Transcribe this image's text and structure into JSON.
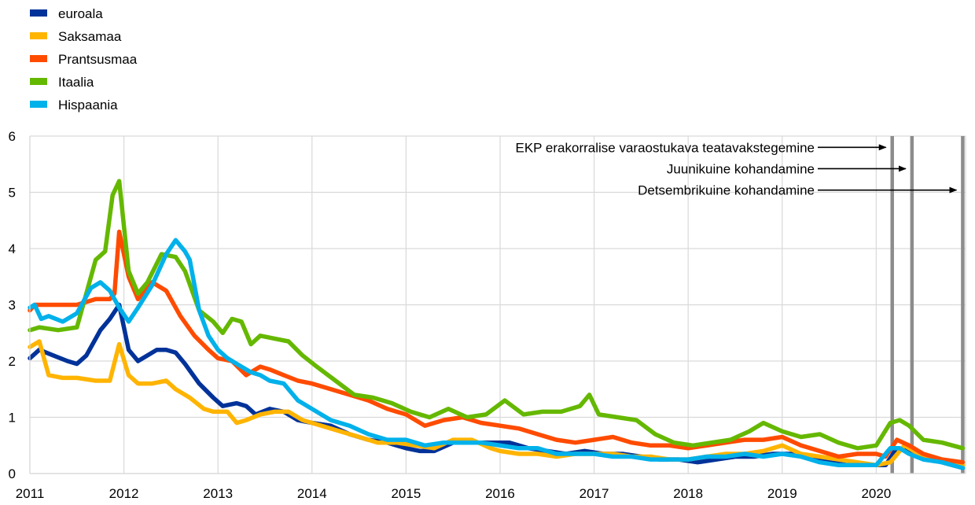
{
  "chart_data": {
    "type": "line",
    "title": "",
    "xlabel": "",
    "ylabel": "",
    "ylim": [
      0,
      6
    ],
    "xlim": [
      2011,
      2020.95
    ],
    "grid": true,
    "legend_position": "top-left",
    "y_ticks": [
      "0",
      "1",
      "2",
      "3",
      "4",
      "5",
      "6"
    ],
    "x_ticks": [
      "2011",
      "2012",
      "2013",
      "2014",
      "2015",
      "2016",
      "2017",
      "2018",
      "2019",
      "2020"
    ],
    "series": [
      {
        "name": "euroala",
        "color": "#003299",
        "x": [
          2011,
          2011.1,
          2011.25,
          2011.4,
          2011.5,
          2011.6,
          2011.75,
          2011.85,
          2011.95,
          2012.05,
          2012.15,
          2012.25,
          2012.35,
          2012.45,
          2012.55,
          2012.65,
          2012.8,
          2012.95,
          2013.05,
          2013.2,
          2013.3,
          2013.4,
          2013.55,
          2013.7,
          2013.85,
          2014,
          2014.2,
          2014.4,
          2014.6,
          2014.8,
          2015,
          2015.15,
          2015.3,
          2015.5,
          2015.7,
          2015.9,
          2016.1,
          2016.3,
          2016.5,
          2016.7,
          2016.9,
          2017.1,
          2017.3,
          2017.5,
          2017.7,
          2017.9,
          2018.1,
          2018.3,
          2018.5,
          2018.7,
          2018.9,
          2019.1,
          2019.3,
          2019.5,
          2019.7,
          2019.9,
          2020.1,
          2020.22,
          2020.35,
          2020.5,
          2020.7,
          2020.92
        ],
        "values": [
          2.05,
          2.2,
          2.1,
          2.0,
          1.95,
          2.1,
          2.55,
          2.75,
          3.0,
          2.2,
          2.0,
          2.1,
          2.2,
          2.2,
          2.15,
          1.95,
          1.6,
          1.35,
          1.2,
          1.25,
          1.2,
          1.05,
          1.15,
          1.1,
          0.95,
          0.9,
          0.85,
          0.7,
          0.6,
          0.55,
          0.45,
          0.4,
          0.4,
          0.55,
          0.55,
          0.55,
          0.55,
          0.45,
          0.4,
          0.35,
          0.4,
          0.35,
          0.35,
          0.3,
          0.25,
          0.25,
          0.2,
          0.25,
          0.3,
          0.3,
          0.35,
          0.35,
          0.3,
          0.2,
          0.15,
          0.15,
          0.15,
          0.45,
          0.4,
          0.3,
          0.2,
          0.1
        ]
      },
      {
        "name": "Saksamaa",
        "color": "#FFB400",
        "x": [
          2011,
          2011.1,
          2011.2,
          2011.35,
          2011.5,
          2011.7,
          2011.85,
          2011.95,
          2012.05,
          2012.15,
          2012.3,
          2012.45,
          2012.55,
          2012.7,
          2012.85,
          2012.95,
          2013.1,
          2013.2,
          2013.3,
          2013.45,
          2013.6,
          2013.75,
          2013.9,
          2014.1,
          2014.3,
          2014.5,
          2014.7,
          2014.9,
          2015.1,
          2015.3,
          2015.5,
          2015.7,
          2015.9,
          2016,
          2016.2,
          2016.4,
          2016.6,
          2016.8,
          2017,
          2017.2,
          2017.4,
          2017.6,
          2017.8,
          2018,
          2018.2,
          2018.4,
          2018.6,
          2018.8,
          2019,
          2019.2,
          2019.4,
          2019.6,
          2019.8,
          2020,
          2020.15,
          2020.3,
          2020.5,
          2020.7,
          2020.92
        ],
        "values": [
          2.25,
          2.35,
          1.75,
          1.7,
          1.7,
          1.65,
          1.65,
          2.3,
          1.75,
          1.6,
          1.6,
          1.65,
          1.5,
          1.35,
          1.15,
          1.1,
          1.1,
          0.9,
          0.95,
          1.05,
          1.1,
          1.1,
          0.95,
          0.85,
          0.75,
          0.65,
          0.55,
          0.55,
          0.5,
          0.45,
          0.6,
          0.6,
          0.45,
          0.4,
          0.35,
          0.35,
          0.3,
          0.35,
          0.35,
          0.35,
          0.3,
          0.3,
          0.25,
          0.25,
          0.3,
          0.35,
          0.35,
          0.4,
          0.5,
          0.35,
          0.3,
          0.25,
          0.2,
          0.15,
          0.2,
          0.5,
          0.3,
          0.2,
          0.15
        ]
      },
      {
        "name": "Prantsusmaa",
        "color": "#FF4B00",
        "x": [
          2011,
          2011.05,
          2011.3,
          2011.5,
          2011.7,
          2011.85,
          2011.9,
          2011.95,
          2012.05,
          2012.15,
          2012.3,
          2012.45,
          2012.6,
          2012.75,
          2012.9,
          2013,
          2013.15,
          2013.3,
          2013.45,
          2013.55,
          2013.7,
          2013.85,
          2014,
          2014.2,
          2014.4,
          2014.6,
          2014.8,
          2015,
          2015.2,
          2015.4,
          2015.6,
          2015.8,
          2016,
          2016.2,
          2016.4,
          2016.6,
          2016.8,
          2017,
          2017.2,
          2017.4,
          2017.6,
          2017.8,
          2018,
          2018.2,
          2018.4,
          2018.6,
          2018.8,
          2019,
          2019.2,
          2019.4,
          2019.6,
          2019.8,
          2020,
          2020.1,
          2020.22,
          2020.35,
          2020.5,
          2020.7,
          2020.92
        ],
        "values": [
          2.9,
          3.0,
          3.0,
          3.0,
          3.1,
          3.1,
          3.2,
          4.3,
          3.5,
          3.1,
          3.4,
          3.25,
          2.8,
          2.45,
          2.2,
          2.05,
          2.0,
          1.75,
          1.9,
          1.85,
          1.75,
          1.65,
          1.6,
          1.5,
          1.4,
          1.3,
          1.15,
          1.05,
          0.85,
          0.95,
          1.0,
          0.9,
          0.85,
          0.8,
          0.7,
          0.6,
          0.55,
          0.6,
          0.65,
          0.55,
          0.5,
          0.5,
          0.45,
          0.5,
          0.55,
          0.6,
          0.6,
          0.65,
          0.5,
          0.4,
          0.3,
          0.35,
          0.35,
          0.3,
          0.6,
          0.5,
          0.35,
          0.25,
          0.2
        ]
      },
      {
        "name": "Itaalia",
        "color": "#65B800",
        "x": [
          2011,
          2011.1,
          2011.3,
          2011.5,
          2011.7,
          2011.8,
          2011.88,
          2011.95,
          2012.05,
          2012.15,
          2012.25,
          2012.4,
          2012.55,
          2012.65,
          2012.8,
          2012.95,
          2013.05,
          2013.15,
          2013.25,
          2013.35,
          2013.45,
          2013.6,
          2013.75,
          2013.9,
          2014.05,
          2014.25,
          2014.45,
          2014.65,
          2014.85,
          2015.05,
          2015.25,
          2015.45,
          2015.65,
          2015.85,
          2016.05,
          2016.25,
          2016.45,
          2016.65,
          2016.85,
          2016.95,
          2017.05,
          2017.25,
          2017.45,
          2017.65,
          2017.85,
          2018.05,
          2018.25,
          2018.45,
          2018.65,
          2018.8,
          2019,
          2019.2,
          2019.4,
          2019.6,
          2019.8,
          2020,
          2020.15,
          2020.25,
          2020.35,
          2020.5,
          2020.7,
          2020.92
        ],
        "values": [
          2.55,
          2.6,
          2.55,
          2.6,
          3.8,
          3.95,
          4.95,
          5.2,
          3.6,
          3.2,
          3.4,
          3.9,
          3.85,
          3.6,
          2.9,
          2.7,
          2.5,
          2.75,
          2.7,
          2.3,
          2.45,
          2.4,
          2.35,
          2.1,
          1.9,
          1.65,
          1.4,
          1.35,
          1.25,
          1.1,
          1.0,
          1.15,
          1.0,
          1.05,
          1.3,
          1.05,
          1.1,
          1.1,
          1.2,
          1.4,
          1.05,
          1.0,
          0.95,
          0.7,
          0.55,
          0.5,
          0.55,
          0.6,
          0.75,
          0.9,
          0.75,
          0.65,
          0.7,
          0.55,
          0.45,
          0.5,
          0.9,
          0.95,
          0.85,
          0.6,
          0.55,
          0.45
        ]
      },
      {
        "name": "Hispaania",
        "color": "#00B1EA",
        "x": [
          2011,
          2011.05,
          2011.12,
          2011.2,
          2011.35,
          2011.5,
          2011.65,
          2011.75,
          2011.85,
          2011.95,
          2012.05,
          2012.15,
          2012.3,
          2012.45,
          2012.55,
          2012.65,
          2012.7,
          2012.8,
          2012.9,
          2013,
          2013.1,
          2013.2,
          2013.35,
          2013.45,
          2013.55,
          2013.7,
          2013.85,
          2014,
          2014.2,
          2014.4,
          2014.6,
          2014.8,
          2015,
          2015.2,
          2015.4,
          2015.6,
          2015.8,
          2016,
          2016.2,
          2016.4,
          2016.6,
          2016.8,
          2017,
          2017.2,
          2017.4,
          2017.6,
          2017.8,
          2018,
          2018.2,
          2018.4,
          2018.6,
          2018.8,
          2019,
          2019.2,
          2019.4,
          2019.6,
          2019.8,
          2020,
          2020.15,
          2020.25,
          2020.35,
          2020.5,
          2020.7,
          2020.92
        ],
        "values": [
          2.95,
          3.0,
          2.75,
          2.8,
          2.7,
          2.85,
          3.3,
          3.4,
          3.25,
          2.95,
          2.7,
          2.95,
          3.35,
          3.9,
          4.15,
          3.95,
          3.8,
          2.9,
          2.45,
          2.2,
          2.05,
          1.95,
          1.8,
          1.75,
          1.65,
          1.6,
          1.3,
          1.15,
          0.95,
          0.85,
          0.7,
          0.6,
          0.6,
          0.5,
          0.55,
          0.55,
          0.55,
          0.5,
          0.45,
          0.45,
          0.35,
          0.35,
          0.35,
          0.3,
          0.3,
          0.25,
          0.25,
          0.25,
          0.3,
          0.3,
          0.35,
          0.3,
          0.35,
          0.3,
          0.2,
          0.15,
          0.15,
          0.15,
          0.45,
          0.45,
          0.35,
          0.25,
          0.2,
          0.1
        ]
      }
    ],
    "vertical_lines": [
      2020.17,
      2020.38,
      2020.92
    ],
    "annotations": [
      {
        "text": "EKP erakorralise varaostukava  teatavakstegemine",
        "target_x": 2020.17,
        "y": 5.8
      },
      {
        "text": "Juunikuine kohandamine",
        "target_x": 2020.38,
        "y": 5.42
      },
      {
        "text": "Detsembrikuine kohandamine",
        "target_x": 2020.92,
        "y": 5.04
      }
    ]
  }
}
